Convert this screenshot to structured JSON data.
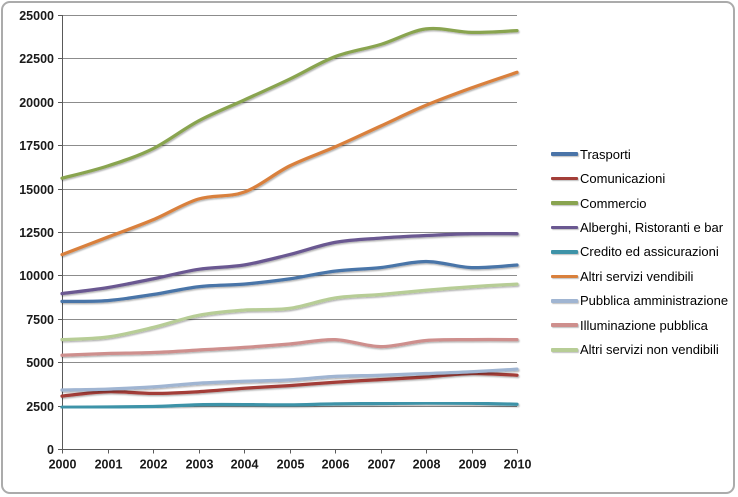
{
  "frame": {
    "background": "#FFFFFF",
    "border_color": "#ABABAB",
    "grid_color": "#8C8C8C",
    "axis_color": "#595959",
    "label_color": "#1A1A1A"
  },
  "chart_data": {
    "type": "line",
    "title": "",
    "xlabel": "",
    "ylabel": "",
    "categories": [
      "2000",
      "2001",
      "2002",
      "2003",
      "2004",
      "2005",
      "2006",
      "2007",
      "2008",
      "2009",
      "2010"
    ],
    "ylim": [
      0,
      25000
    ],
    "ytick_step": 2500,
    "yticks": [
      "0",
      "2500",
      "5000",
      "7500",
      "10000",
      "12500",
      "15000",
      "17500",
      "20000",
      "22500",
      "25000"
    ],
    "grid": "horizontal",
    "legend_position": "right",
    "smoothed_lines": true,
    "series": [
      {
        "name": "Trasporti",
        "color": "#4A74A8",
        "values": [
          8500,
          8550,
          8900,
          9350,
          9500,
          9800,
          10250,
          10450,
          10800,
          10450,
          10600
        ]
      },
      {
        "name": "Comunicazioni",
        "color": "#A33E38",
        "values": [
          3050,
          3300,
          3200,
          3300,
          3500,
          3650,
          3850,
          4000,
          4150,
          4350,
          4250
        ]
      },
      {
        "name": "Commercio",
        "color": "#89A450",
        "values": [
          15600,
          16300,
          17300,
          18900,
          20100,
          21300,
          22600,
          23300,
          24200,
          24000,
          24100
        ]
      },
      {
        "name": "Alberghi, Ristoranti e bar",
        "color": "#6A5891",
        "values": [
          8950,
          9300,
          9800,
          10350,
          10600,
          11200,
          11900,
          12150,
          12300,
          12400,
          12400
        ]
      },
      {
        "name": "Credito ed assicurazioni",
        "color": "#3E93A8",
        "values": [
          2400,
          2420,
          2450,
          2550,
          2560,
          2540,
          2600,
          2620,
          2650,
          2630,
          2580
        ]
      },
      {
        "name": "Altri servizi vendibili",
        "color": "#D9803C",
        "values": [
          11200,
          12200,
          13200,
          14400,
          14800,
          16300,
          17400,
          18600,
          19800,
          20800,
          21700
        ]
      },
      {
        "name": "Pubblica amministrazione",
        "color": "#A0B5D2",
        "values": [
          3400,
          3450,
          3580,
          3790,
          3900,
          3980,
          4180,
          4250,
          4350,
          4450,
          4600
        ]
      },
      {
        "name": "Illuminazione pubblica",
        "color": "#CE8F8D",
        "values": [
          5400,
          5500,
          5560,
          5700,
          5850,
          6050,
          6300,
          5900,
          6250,
          6300,
          6300
        ]
      },
      {
        "name": "Altri servizi non vendibili",
        "color": "#B7CD96",
        "values": [
          6300,
          6450,
          7000,
          7700,
          8000,
          8100,
          8700,
          8900,
          9150,
          9350,
          9500
        ]
      }
    ]
  }
}
